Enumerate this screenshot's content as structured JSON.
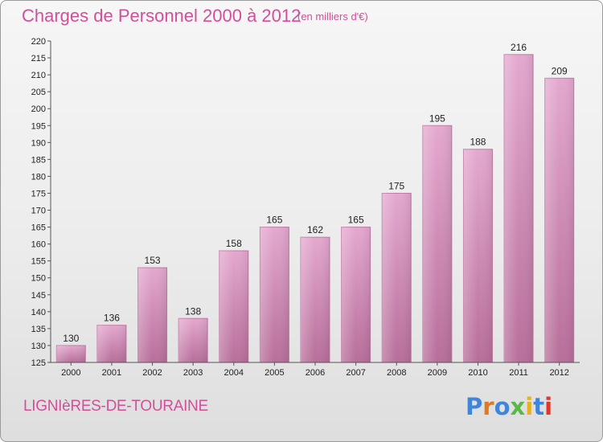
{
  "chart_data": {
    "type": "bar",
    "title": "Charges de Personnel 2000 à 2012",
    "subtitle": "(en milliers d'€)",
    "categories": [
      "2000",
      "2001",
      "2002",
      "2003",
      "2004",
      "2005",
      "2006",
      "2007",
      "2008",
      "2009",
      "2010",
      "2011",
      "2012"
    ],
    "values": [
      130,
      136,
      153,
      138,
      158,
      165,
      162,
      165,
      175,
      195,
      188,
      216,
      209
    ],
    "ylim": [
      125,
      220
    ],
    "yticks": [
      125,
      130,
      135,
      140,
      145,
      150,
      155,
      160,
      165,
      170,
      175,
      180,
      185,
      190,
      195,
      200,
      205,
      210,
      215,
      220
    ],
    "grid": false,
    "bar_color": "#d98fbd"
  },
  "footer": {
    "place": "LIGNIèRES-DE-TOURAINE",
    "logo": "Proxiti",
    "logo_colors": [
      "#3f86d8",
      "#e07a1c",
      "#3f86d8",
      "#5ab84a",
      "#e8b01c",
      "#3f86d8",
      "#e0352a"
    ]
  },
  "colors": {
    "accent": "#d0509a"
  }
}
